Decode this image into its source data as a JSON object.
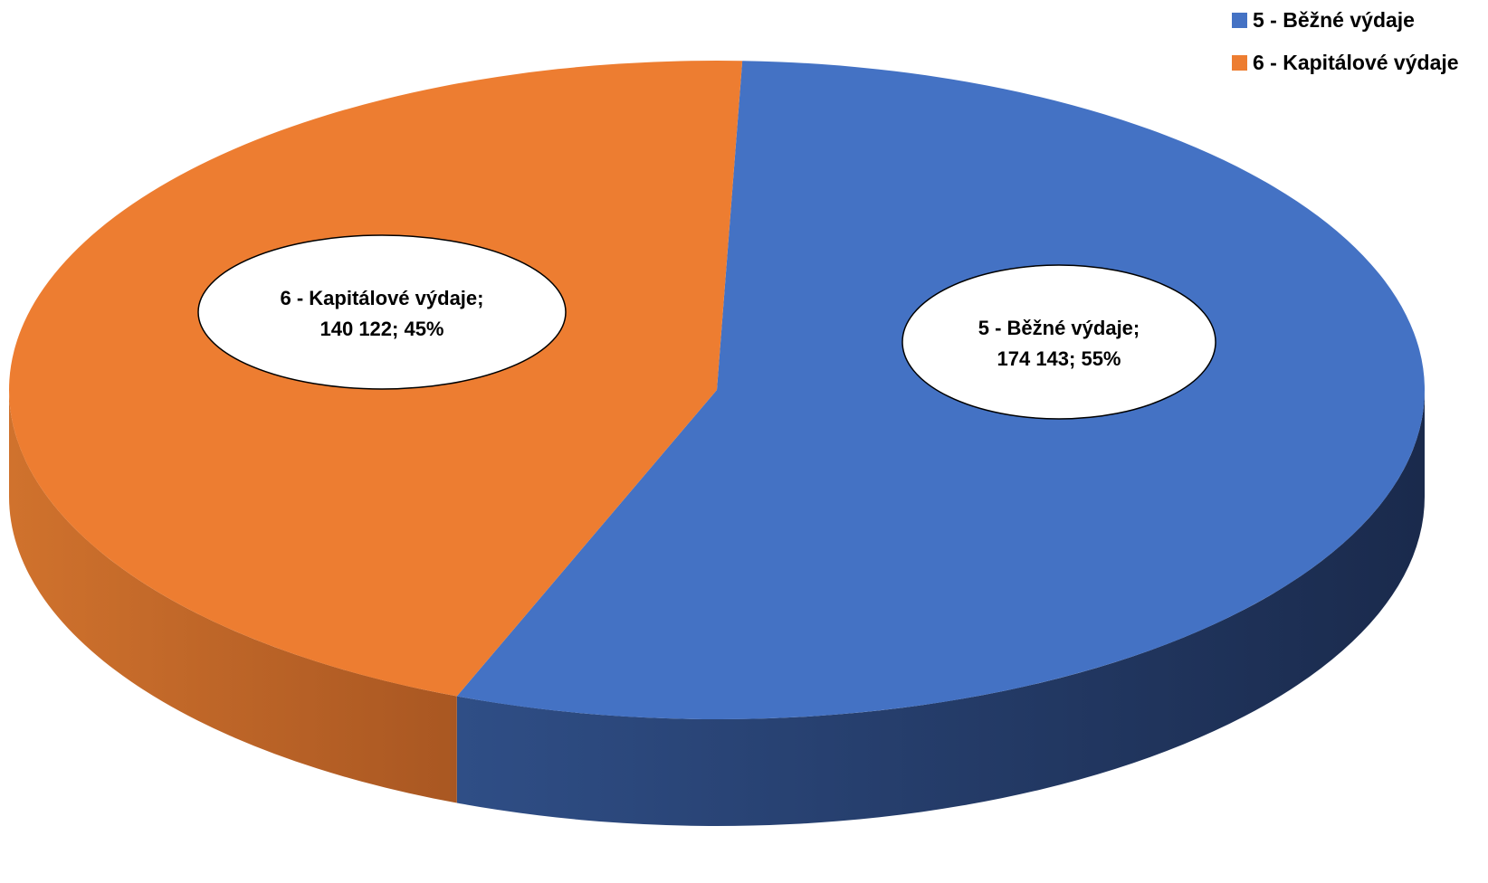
{
  "chart_data": {
    "type": "pie",
    "title": "",
    "categories": [
      "5 - Běžné výdaje",
      "6 - Kapitálové výdaje"
    ],
    "values": [
      174143,
      140122
    ],
    "percentages": [
      55,
      45
    ],
    "data_labels": [
      {
        "line1": "5 - Běžné výdaje;",
        "line2": "174 143; 55%"
      },
      {
        "line1": "6 - Kapitálové výdaje;",
        "line2": "140 122; 45%"
      }
    ],
    "colors": [
      "#4472C4",
      "#ED7D31"
    ],
    "legend_position": "top-right",
    "style": "3d"
  },
  "legend": {
    "items": [
      {
        "label": "5 - Běžné výdaje",
        "color": "#4472C4"
      },
      {
        "label": "6 - Kapitálové výdaje",
        "color": "#ED7D31"
      }
    ]
  }
}
